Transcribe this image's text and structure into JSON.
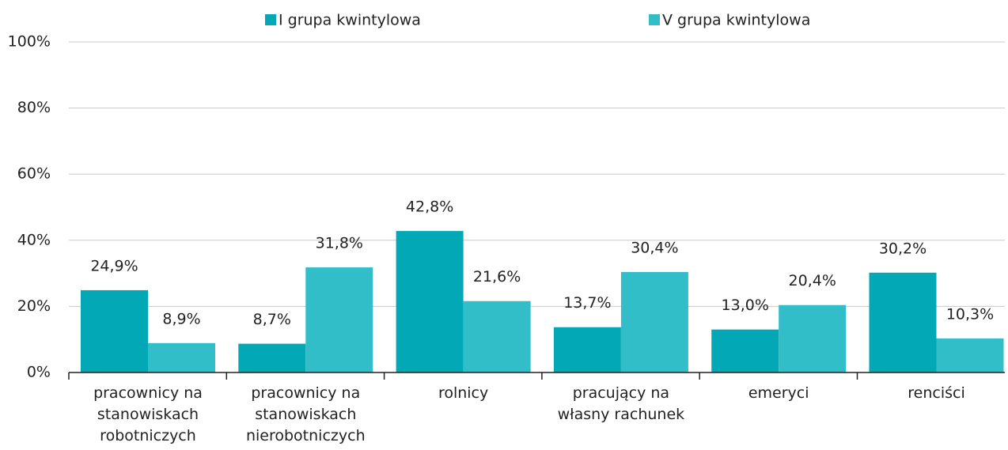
{
  "chart_data": {
    "type": "bar",
    "categories": [
      "pracownicy na stanowiskach robotniczych",
      "pracownicy na stanowiskach nierobotniczych",
      "rolnicy",
      "pracujący na własny rachunek",
      "emeryci",
      "renciści"
    ],
    "series": [
      {
        "name": "I grupa kwintylowa",
        "color": "#03a8b6",
        "values": [
          24.9,
          8.7,
          42.8,
          13.7,
          13.0,
          30.2
        ],
        "value_labels": [
          "24,9%",
          "8,7%",
          "42,8%",
          "13,7%",
          "13,0%",
          "30,2%"
        ]
      },
      {
        "name": "V grupa kwintylowa",
        "color": "#31bec9",
        "values": [
          8.9,
          31.8,
          21.6,
          30.4,
          20.4,
          10.3
        ],
        "value_labels": [
          "8,9%",
          "31,8%",
          "21,6%",
          "30,4%",
          "20,4%",
          "10,3%"
        ]
      }
    ],
    "ylim": [
      0,
      100
    ],
    "yticks": [
      {
        "value": 0,
        "label": "0%"
      },
      {
        "value": 20,
        "label": "20%"
      },
      {
        "value": 40,
        "label": "40%"
      },
      {
        "value": 60,
        "label": "60%"
      },
      {
        "value": 80,
        "label": "80%"
      },
      {
        "value": 100,
        "label": "100%"
      }
    ],
    "grid": true,
    "legend": "top"
  }
}
